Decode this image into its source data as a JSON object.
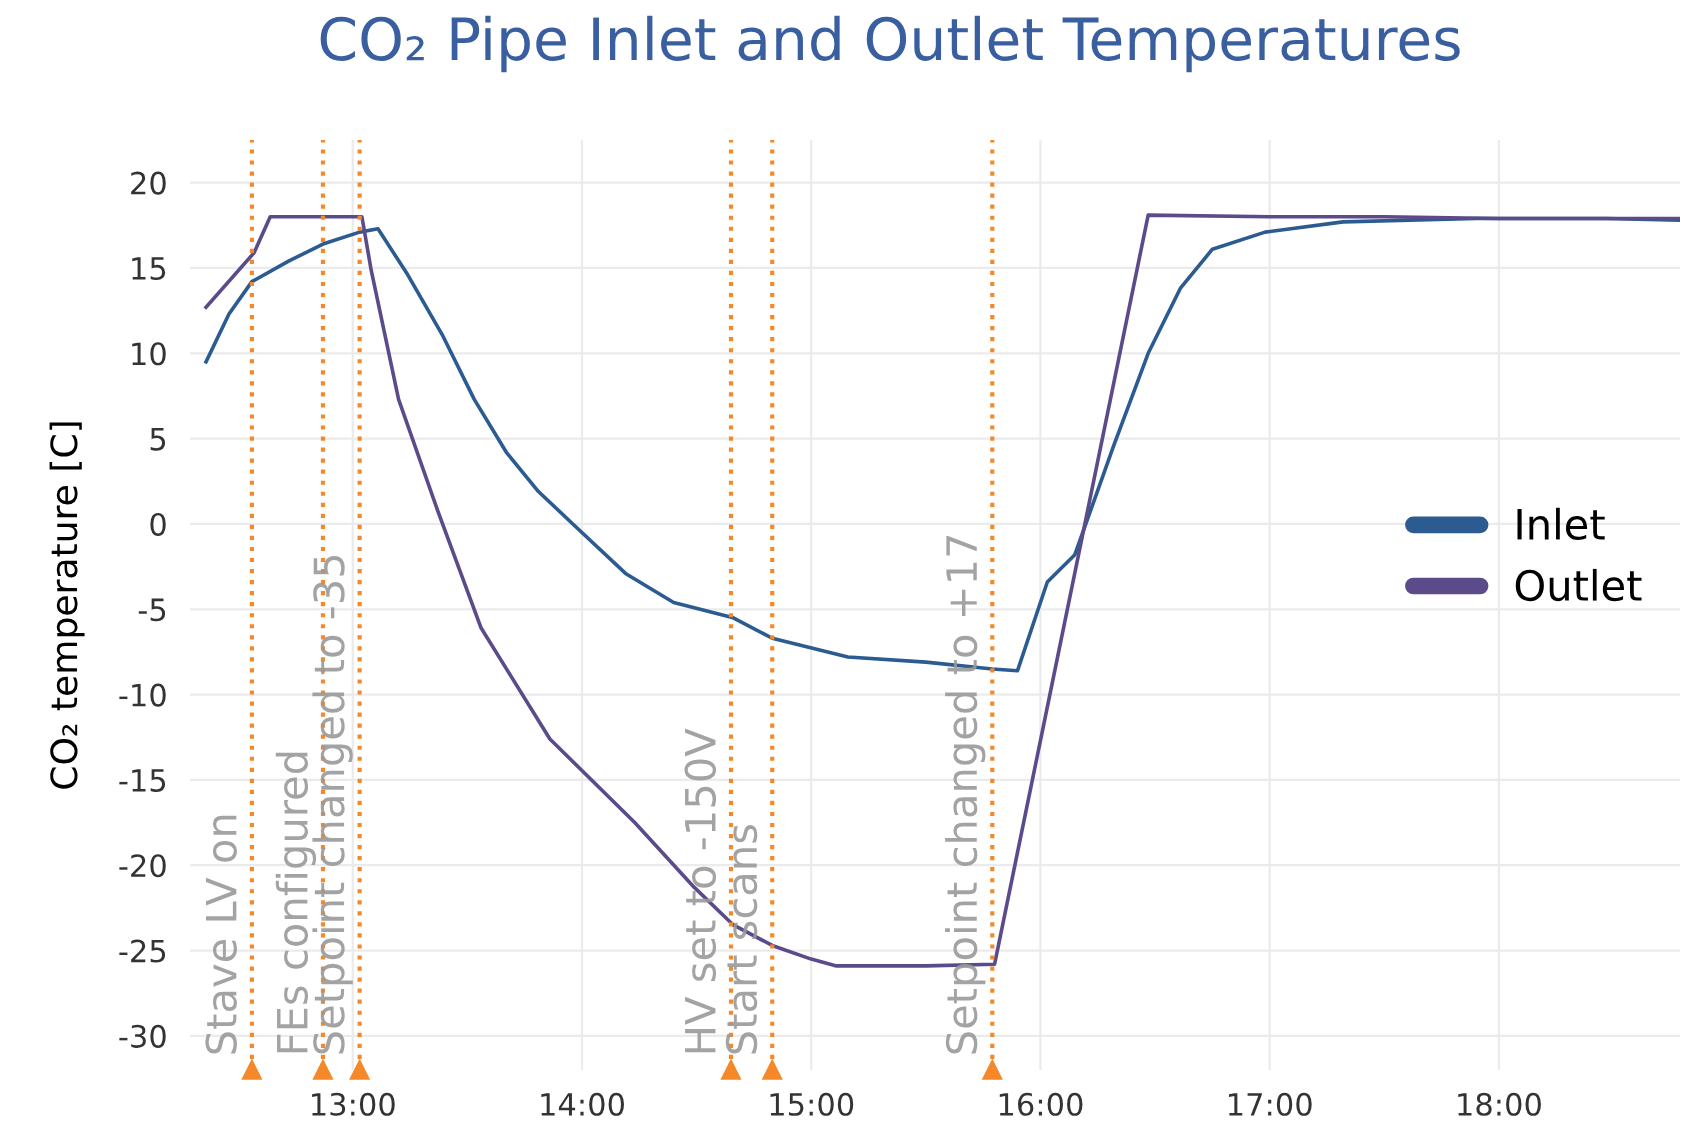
{
  "chart_data": {
    "type": "line",
    "title": "CO₂ Pipe Inlet and Outlet Temperatures",
    "ylabel": "CO₂ temperature [C]",
    "xlim": [
      12.29,
      18.79
    ],
    "ylim": [
      -32,
      22.5
    ],
    "xticks": [
      {
        "value": 13,
        "label": "13:00"
      },
      {
        "value": 14,
        "label": "14:00"
      },
      {
        "value": 15,
        "label": "15:00"
      },
      {
        "value": 16,
        "label": "16:00"
      },
      {
        "value": 17,
        "label": "17:00"
      },
      {
        "value": 18,
        "label": "18:00"
      }
    ],
    "yticks": [
      -30,
      -25,
      -20,
      -15,
      -10,
      -5,
      0,
      5,
      10,
      15,
      20
    ],
    "grid": true,
    "legend": "right",
    "series": [
      {
        "name": "Inlet",
        "color": "#2c5b92",
        "x": [
          12.36,
          12.46,
          12.56,
          12.72,
          12.87,
          13.03,
          13.11,
          13.24,
          13.39,
          13.53,
          13.67,
          13.81,
          13.96,
          14.19,
          14.4,
          14.66,
          14.83,
          15.16,
          15.5,
          15.79,
          15.9,
          16.03,
          16.15,
          16.32,
          16.47,
          16.61,
          16.75,
          16.98,
          17.32,
          17.9,
          18.47,
          18.79
        ],
        "values": [
          9.5,
          12.3,
          14.2,
          15.4,
          16.4,
          17.1,
          17.3,
          14.6,
          11.1,
          7.3,
          4.2,
          1.9,
          0,
          -2.9,
          -4.6,
          -5.5,
          -6.7,
          -7.8,
          -8.1,
          -8.5,
          -8.6,
          -3.4,
          -1.8,
          4.6,
          10.0,
          13.8,
          16.1,
          17.1,
          17.7,
          17.9,
          17.9,
          17.8
        ]
      },
      {
        "name": "Outlet",
        "color": "#5b4b8a",
        "x": [
          12.36,
          12.57,
          12.64,
          13.04,
          13.08,
          13.2,
          13.37,
          13.56,
          13.86,
          14.23,
          14.49,
          14.66,
          14.83,
          15.0,
          15.11,
          15.5,
          15.8,
          16.47,
          17.0,
          17.5,
          18.0,
          18.79
        ],
        "values": [
          12.7,
          15.9,
          18.0,
          18.0,
          14.9,
          7.3,
          0.8,
          -6.1,
          -12.6,
          -17.5,
          -21.3,
          -23.5,
          -24.7,
          -25.5,
          -25.9,
          -25.9,
          -25.8,
          18.1,
          18.0,
          18.0,
          17.9,
          17.9
        ]
      }
    ],
    "ref_lines": [
      {
        "axis": "x",
        "value": 12.56,
        "label": "Stave LV on",
        "color": "#f5892a",
        "line_style": "dotted"
      },
      {
        "axis": "x",
        "value": 12.87,
        "label": "FEs configured",
        "color": "#f5892a",
        "line_style": "dotted"
      },
      {
        "axis": "x",
        "value": 13.03,
        "label": "Setpoint changed to -35",
        "color": "#f5892a",
        "line_style": "dotted"
      },
      {
        "axis": "x",
        "value": 14.65,
        "label": "HV set to -150V",
        "color": "#f5892a",
        "line_style": "dotted"
      },
      {
        "axis": "x",
        "value": 14.83,
        "label": "Start scans",
        "color": "#f5892a",
        "line_style": "dotted"
      },
      {
        "axis": "x",
        "value": 15.79,
        "label": "Setpoint changed to +17",
        "color": "#f5892a",
        "line_style": "dotted"
      }
    ]
  }
}
